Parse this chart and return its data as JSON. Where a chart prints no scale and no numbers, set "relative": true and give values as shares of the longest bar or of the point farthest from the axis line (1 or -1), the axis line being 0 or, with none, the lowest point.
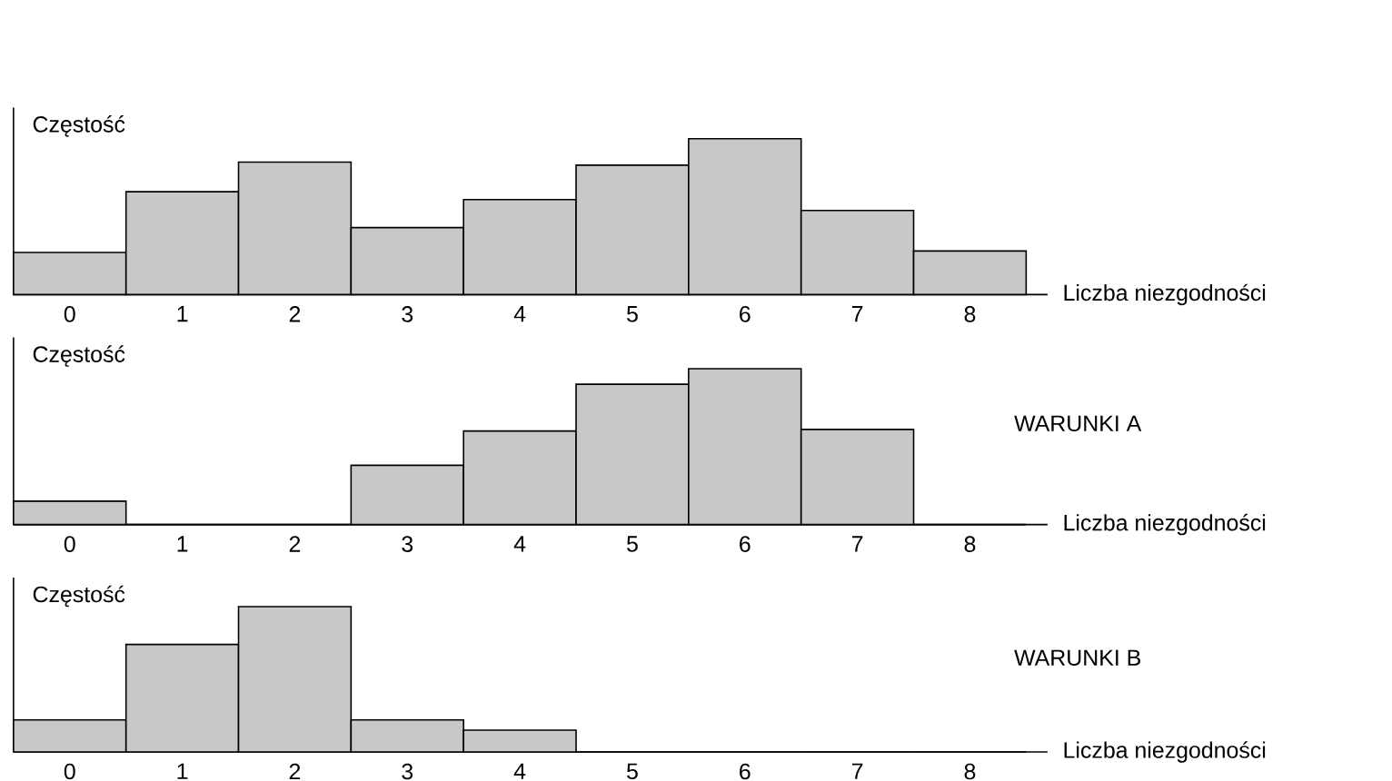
{
  "chart_data": [
    {
      "type": "bar",
      "relative": true,
      "ylabel": "Częstość",
      "xlabel": "Liczba niezgodności",
      "color": "#c7c8ca",
      "categories": [
        "0",
        "1",
        "2",
        "3",
        "4",
        "5",
        "6",
        "7",
        "8"
      ],
      "values": [
        0.27,
        0.66,
        0.85,
        0.43,
        0.61,
        0.83,
        1,
        0.54,
        0.28
      ]
    },
    {
      "type": "bar",
      "relative": true,
      "ylabel": "Częstość",
      "xlabel": "Liczba niezgodności",
      "color": "#c7c8ca",
      "annotations": [
        "WARUNKI A"
      ],
      "categories": [
        "0",
        "1",
        "2",
        "3",
        "4",
        "5",
        "6",
        "7",
        "8"
      ],
      "values": [
        0.15,
        0,
        0,
        0.38,
        0.6,
        0.9,
        1,
        0.61,
        0
      ]
    },
    {
      "type": "bar",
      "relative": true,
      "ylabel": "Częstość",
      "xlabel": "Liczba niezgodności",
      "color": "#c7c8ca",
      "annotations": [
        "WARUNKI B"
      ],
      "categories": [
        "0",
        "1",
        "2",
        "3",
        "4",
        "5",
        "6",
        "7",
        "8"
      ],
      "values": [
        0.22,
        0.74,
        1,
        0.22,
        0.15,
        0,
        0,
        0,
        0
      ]
    }
  ]
}
